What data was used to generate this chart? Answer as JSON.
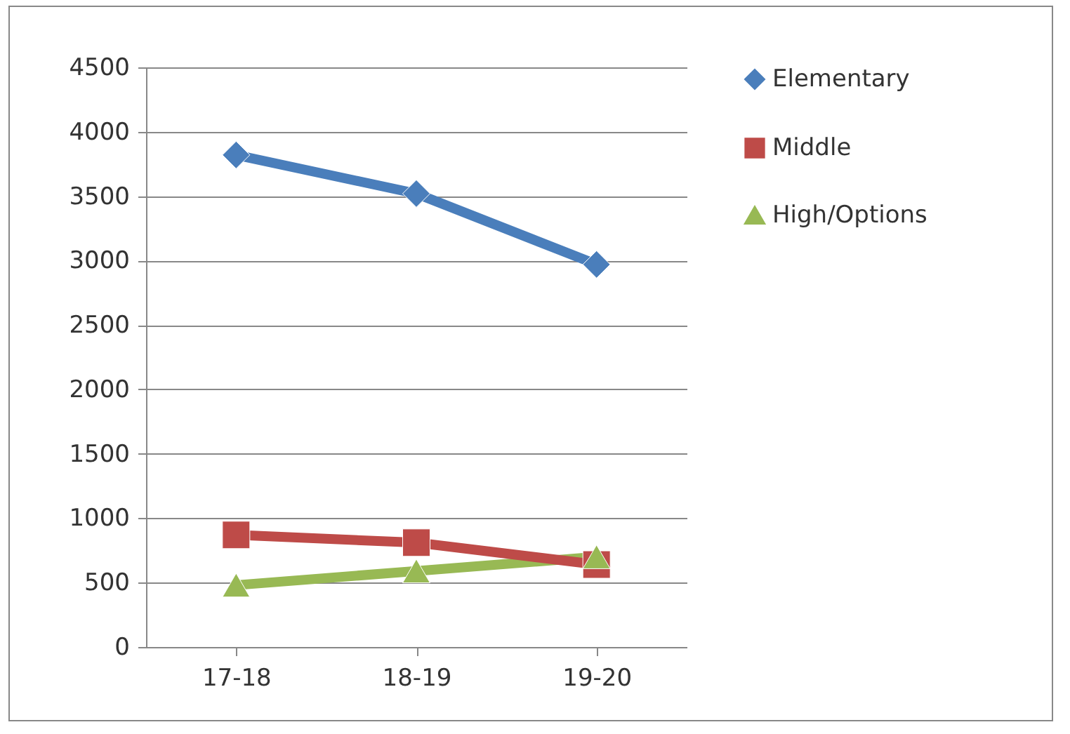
{
  "chart_data": {
    "type": "line",
    "categories": [
      "17-18",
      "18-19",
      "19-20"
    ],
    "series": [
      {
        "name": "Elementary",
        "color": "#4a7ebb",
        "marker": "diamond",
        "values": [
          3820,
          3520,
          2970
        ]
      },
      {
        "name": "Middle",
        "color": "#be4b48",
        "marker": "square",
        "values": [
          870,
          810,
          640
        ]
      },
      {
        "name": "High/Options",
        "color": "#98b954",
        "marker": "triangle",
        "values": [
          480,
          590,
          700
        ]
      }
    ],
    "ylim": [
      0,
      4500
    ],
    "yticks": [
      0,
      500,
      1000,
      1500,
      2000,
      2500,
      3000,
      3500,
      4000,
      4500
    ],
    "grid": "y",
    "legend": "right",
    "line_style": "solid"
  }
}
